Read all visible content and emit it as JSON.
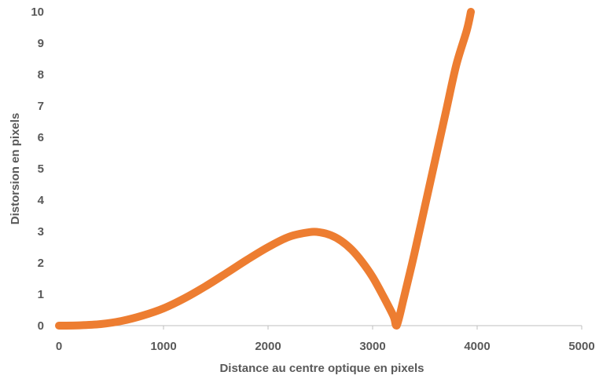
{
  "chart_data": {
    "type": "line",
    "title": "",
    "xlabel": "Distance au centre optique en pixels",
    "ylabel": "Distorsion en pixels",
    "xlim": [
      0,
      5000
    ],
    "ylim": [
      0,
      10
    ],
    "x_ticks": [
      "0",
      "1000",
      "2000",
      "3000",
      "4000",
      "5000"
    ],
    "y_ticks": [
      "0",
      "1",
      "2",
      "3",
      "4",
      "5",
      "6",
      "7",
      "8",
      "9",
      "10"
    ],
    "grid": false,
    "legend": "none",
    "series": [
      {
        "color": "#ed7d31",
        "x": [
          0,
          200,
          400,
          600,
          800,
          1000,
          1200,
          1400,
          1600,
          1800,
          2000,
          2200,
          2400,
          2500,
          2600,
          2700,
          2800,
          2900,
          3000,
          3100,
          3200,
          3230,
          3300,
          3400,
          3500,
          3600,
          3700,
          3800,
          3900,
          3940
        ],
        "y": [
          0,
          0.01,
          0.05,
          0.15,
          0.32,
          0.55,
          0.87,
          1.25,
          1.67,
          2.1,
          2.5,
          2.83,
          2.98,
          2.97,
          2.88,
          2.7,
          2.42,
          2.03,
          1.55,
          0.95,
          0.3,
          0,
          0.9,
          2.3,
          3.8,
          5.3,
          6.8,
          8.3,
          9.4,
          10
        ]
      }
    ]
  }
}
